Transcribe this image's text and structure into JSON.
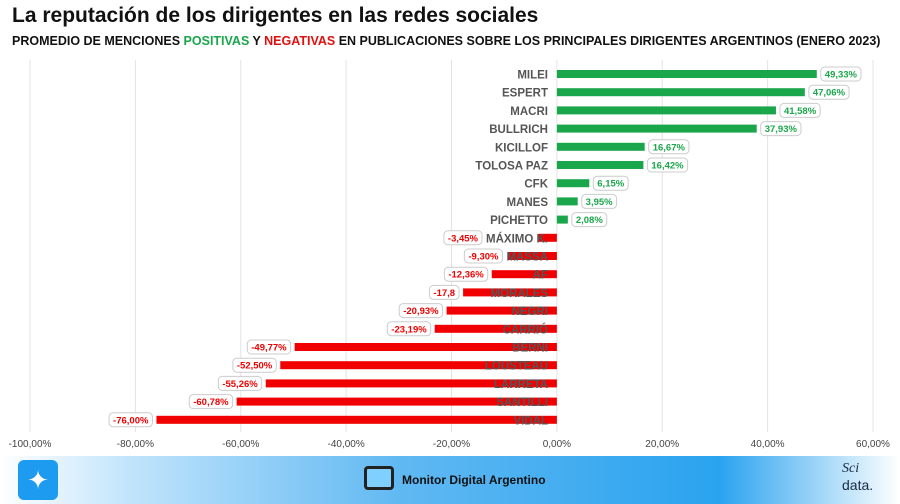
{
  "chart_data": {
    "type": "bar",
    "orientation": "horizontal",
    "title": "La reputación de los dirigentes en las redes sociales",
    "subtitle": {
      "pre": "PROMEDIO DE MENCIONES ",
      "pos": "POSITIVAS",
      "mid": " Y ",
      "neg": "NEGATIVAS",
      "post": " EN PUBLICACIONES SOBRE LOS PRINCIPALES DIRIGENTES ARGENTINOS (ENERO 2023)"
    },
    "categories": [
      "MILEI",
      "ESPERT",
      "MACRI",
      "BULLRICH",
      "KICILLOF",
      "TOLOSA PAZ",
      "CFK",
      "MANES",
      "PICHETTO",
      "MÁXIMO K.",
      "MASSA",
      "AF",
      "MORALES",
      "NEGRI",
      "CARRIÓ",
      "BERNI",
      "LOUSTEAU",
      "LARRETA",
      "SANTILLI",
      "VIDAL"
    ],
    "values": [
      49.33,
      47.06,
      41.58,
      37.93,
      16.67,
      16.42,
      6.15,
      3.95,
      2.08,
      -3.45,
      -9.3,
      -12.36,
      -17.8,
      -20.93,
      -23.19,
      -49.77,
      -52.5,
      -55.26,
      -60.78,
      -76.0
    ],
    "data_labels": [
      "49,33%",
      "47,06%",
      "41,58%",
      "37,93%",
      "16,67%",
      "16,42%",
      "6,15%",
      "3,95%",
      "2,08%",
      "-3,45%",
      "-9,30%",
      "-12,36%",
      "-17,8",
      "-20,93%",
      "-23,19%",
      "-49,77%",
      "-52,50%",
      "-55,26%",
      "-60,78%",
      "-76,00%"
    ],
    "xlim": [
      -100,
      60
    ],
    "x_ticks": [
      -100,
      -80,
      -60,
      -40,
      -20,
      0,
      20,
      40,
      60
    ],
    "x_tick_labels": [
      "-100,00%",
      "-80,00%",
      "-60,00%",
      "-40,00%",
      "-20,00%",
      "0,00%",
      "20,00%",
      "40,00%",
      "60,00%"
    ],
    "grid": true,
    "colors": {
      "positive": "#1aa64a",
      "negative": "#f00000"
    }
  },
  "footer": {
    "brand": "Monitor Digital Argentino",
    "logo_top": "Sci",
    "logo_bottom": "data.",
    "icon": "twitter-icon"
  }
}
